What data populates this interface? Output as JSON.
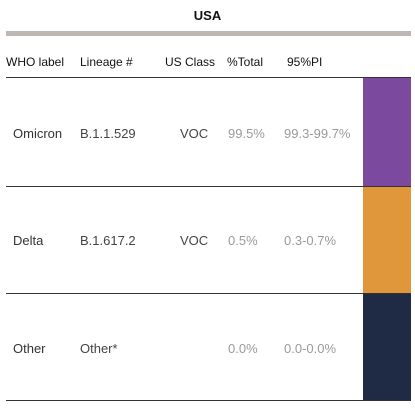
{
  "title": "USA",
  "headers": {
    "who_label": "WHO label",
    "lineage": "Lineage #",
    "us_class": "US Class",
    "pct_total": "%Total",
    "pi": "95%PI"
  },
  "rows": [
    {
      "who": "Omicron",
      "lineage": "B.1.1.529",
      "us_class": "VOC",
      "pct_total": "99.5%",
      "pi": "99.3-99.7%",
      "color": "#7b4a9e"
    },
    {
      "who": "Delta",
      "lineage": "B.1.617.2",
      "us_class": "VOC",
      "pct_total": "0.5%",
      "pi": "0.3-0.7%",
      "color": "#e0963a"
    },
    {
      "who": "Other",
      "lineage": "Other*",
      "us_class": "",
      "pct_total": "0.0%",
      "pi": "0.0-0.0%",
      "color": "#1f2a44"
    }
  ]
}
